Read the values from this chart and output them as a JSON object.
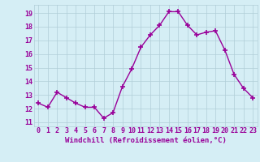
{
  "x": [
    0,
    1,
    2,
    3,
    4,
    5,
    6,
    7,
    8,
    9,
    10,
    11,
    12,
    13,
    14,
    15,
    16,
    17,
    18,
    19,
    20,
    21,
    22,
    23
  ],
  "y": [
    12.4,
    12.1,
    13.2,
    12.8,
    12.4,
    12.1,
    12.1,
    11.3,
    11.7,
    13.6,
    14.9,
    16.5,
    17.4,
    18.1,
    19.1,
    19.1,
    18.1,
    17.4,
    17.6,
    17.7,
    16.3,
    14.5,
    13.5,
    12.8
  ],
  "line_color": "#990099",
  "marker": "+",
  "marker_size": 4,
  "marker_linewidth": 1.2,
  "line_width": 1.0,
  "xlabel": "Windchill (Refroidissement éolien,°C)",
  "ylim": [
    10.7,
    19.6
  ],
  "xlim": [
    -0.5,
    23.5
  ],
  "yticks": [
    11,
    12,
    13,
    14,
    15,
    16,
    17,
    18,
    19
  ],
  "xticks": [
    0,
    1,
    2,
    3,
    4,
    5,
    6,
    7,
    8,
    9,
    10,
    11,
    12,
    13,
    14,
    15,
    16,
    17,
    18,
    19,
    20,
    21,
    22,
    23
  ],
  "background_color": "#d5eef5",
  "grid_color": "#b0cdd8",
  "label_color": "#990099",
  "font_family": "monospace",
  "xlabel_fontsize": 6.5,
  "tick_fontsize": 6.0
}
